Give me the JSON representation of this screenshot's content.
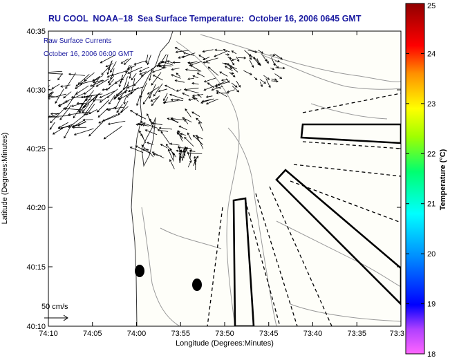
{
  "title": "RU COOL  NOAA–18  Sea Surface Temperature:  October 16, 2006 0645 GMT",
  "overlay": {
    "line1": "Raw Surface Currents",
    "line2": "October 16, 2006 06:00 GMT"
  },
  "scale_label": "50 cm/s",
  "axes": {
    "xlabel": "Longitude (Degrees:Minutes)",
    "ylabel": "Latitude (Degrees:Minutes)",
    "x_ticks": [
      "74:10",
      "74:05",
      "74:00",
      "73:55",
      "73:50",
      "73:45",
      "73:40",
      "73:35",
      "73:3"
    ],
    "y_ticks": [
      "40:35",
      "40:30",
      "40:25",
      "40:20",
      "40:15",
      "40:10"
    ]
  },
  "colorbar": {
    "label": "Temperature (°C)",
    "ticks": [
      "25",
      "24",
      "23",
      "22",
      "21",
      "20",
      "19",
      "18"
    ],
    "min": 18,
    "max": 25
  }
}
